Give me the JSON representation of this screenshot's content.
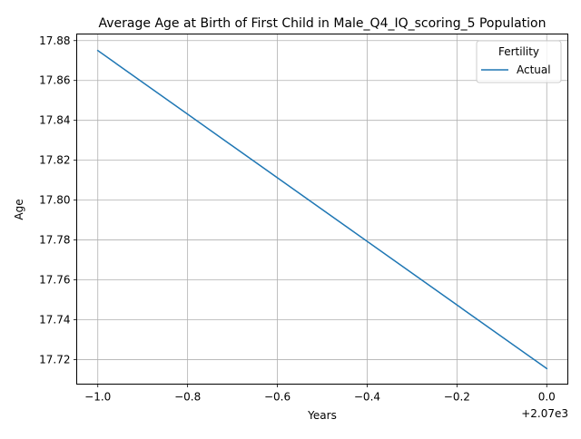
{
  "chart_data": {
    "type": "line",
    "title": "Average Age at Birth of First Child in Male_Q4_IQ_scoring_5 Population",
    "xlabel": "Years",
    "ylabel": "Age",
    "x_offset_label": "+2.07e3",
    "x": [
      2069,
      2070
    ],
    "x_tick_values": [
      2069.0,
      2069.2,
      2069.4,
      2069.6,
      2069.8,
      2070.0
    ],
    "x_tick_labels": [
      "−1.0",
      "−0.8",
      "−0.6",
      "−0.4",
      "−0.2",
      "0.0"
    ],
    "xlim": [
      2068.953,
      2070.047
    ],
    "y_tick_values": [
      17.72,
      17.74,
      17.76,
      17.78,
      17.8,
      17.82,
      17.84,
      17.86,
      17.88
    ],
    "y_tick_labels": [
      "17.72",
      "17.74",
      "17.76",
      "17.78",
      "17.80",
      "17.82",
      "17.84",
      "17.86",
      "17.88"
    ],
    "ylim": [
      17.7077,
      17.8833
    ],
    "series": [
      {
        "name": "Actual",
        "values": [
          17.875,
          17.7155
        ],
        "color": "#1f77b4"
      }
    ],
    "legend": {
      "title": "Fertility",
      "placement": "top-right"
    },
    "grid": true,
    "colors": {
      "grid": "#b0b0b0",
      "axes": "#000000"
    }
  }
}
